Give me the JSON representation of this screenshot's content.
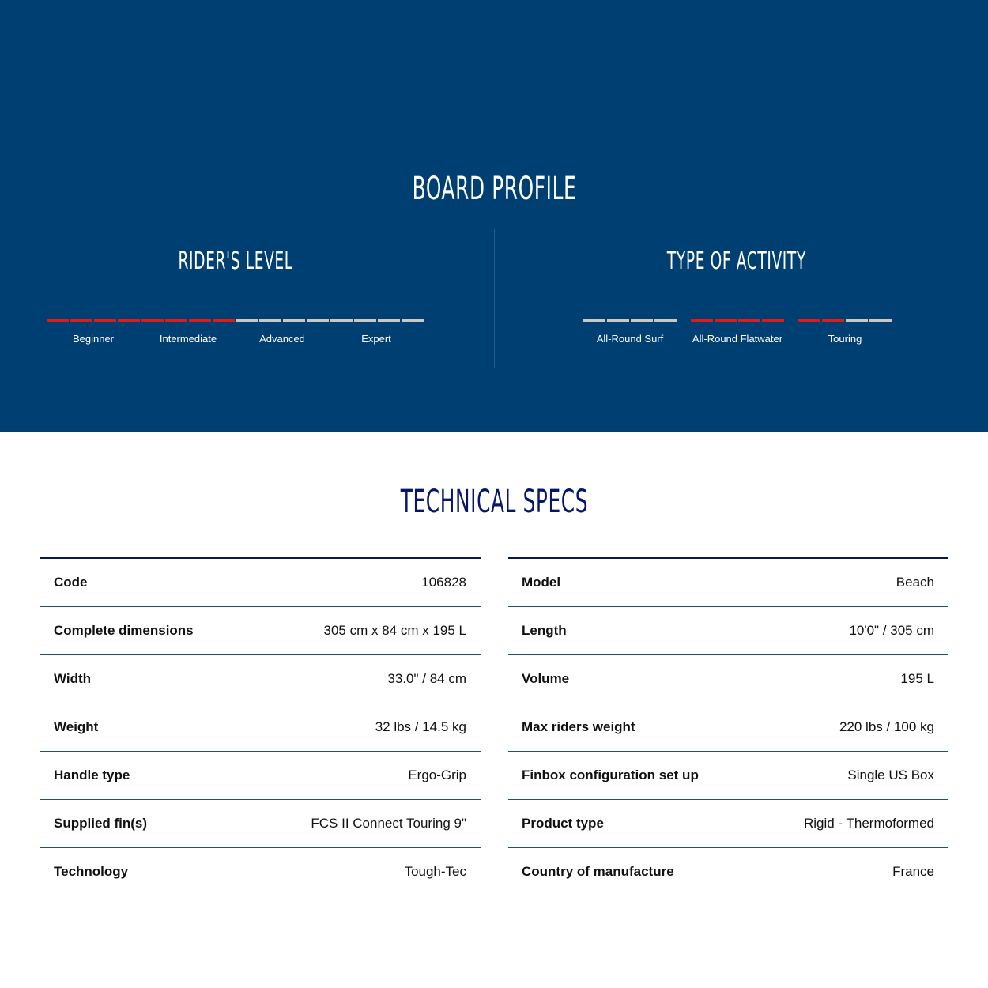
{
  "board_profile": {
    "title": "BOARD PROFILE",
    "riders_level": {
      "title": "RIDER'S LEVEL",
      "levels": [
        "Beginner",
        "Intermediate",
        "Advanced",
        "Expert"
      ],
      "segments_total": 16,
      "segments_filled": 8
    },
    "type_of_activity": {
      "title": "TYPE OF ACTIVITY",
      "activities": [
        {
          "label": "All-Round Surf",
          "filled": 0,
          "total": 4
        },
        {
          "label": "All-Round Flatwater",
          "filled": 4,
          "total": 4
        },
        {
          "label": "Touring",
          "filled": 2,
          "total": 4
        }
      ]
    },
    "colors": {
      "background": "#003f72",
      "filled": "#e1191f",
      "empty": "#c8c8c8"
    }
  },
  "technical_specs": {
    "title": "TECHNICAL SPECS",
    "left": [
      {
        "key": "Code",
        "value": "106828"
      },
      {
        "key": "Complete dimensions",
        "value": "305 cm x 84 cm x 195 L"
      },
      {
        "key": "Width",
        "value": "33.0\" / 84 cm"
      },
      {
        "key": "Weight",
        "value": "32 lbs / 14.5 kg"
      },
      {
        "key": "Handle type",
        "value": "Ergo-Grip"
      },
      {
        "key": "Supplied fin(s)",
        "value": "FCS II Connect Touring 9\""
      },
      {
        "key": "Technology",
        "value": "Tough-Tec"
      }
    ],
    "right": [
      {
        "key": "Model",
        "value": "Beach"
      },
      {
        "key": "Length",
        "value": "10'0\" / 305 cm"
      },
      {
        "key": "Volume",
        "value": "195 L"
      },
      {
        "key": "Max riders weight",
        "value": "220 lbs / 100 kg"
      },
      {
        "key": "Finbox configuration set up",
        "value": "Single US Box"
      },
      {
        "key": "Product type",
        "value": "Rigid - Thermoformed"
      },
      {
        "key": "Country of manufacture",
        "value": "France"
      }
    ]
  }
}
